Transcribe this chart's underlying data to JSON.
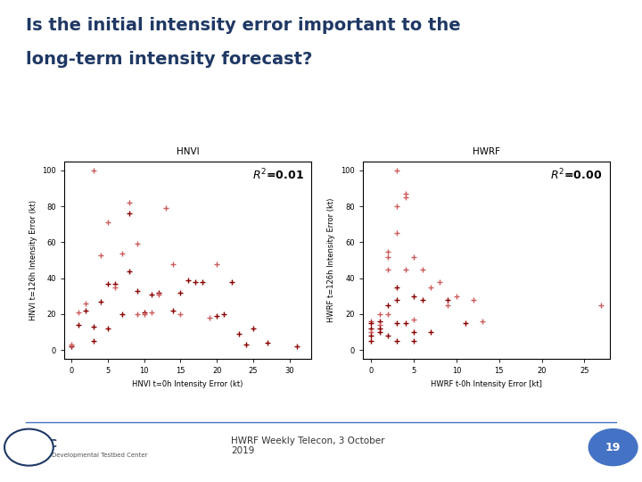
{
  "title_line1": "Is the initial intensity error important to the",
  "title_line2": "long-term intensity forecast?",
  "title_color": "#1F3864",
  "title_fontsize": 14,
  "background_color": "#FFFFFF",
  "plot1_title": "HNVI",
  "plot2_title": "HWRF",
  "plot1_xlabel": "HNVI t=0h Intensity Error (kt)",
  "plot1_ylabel": "HNVI t=126h Intensity Error (kt)",
  "plot2_xlabel": "HWRF t-0h Intensity Error [kt]",
  "plot2_ylabel": "HWRF t=126h Intensity Error (kt)",
  "plot1_r2_label": "$R^2$=0.01",
  "plot2_r2_label": "$R^2$=0.00",
  "marker_color_dark": "#8B0000",
  "marker_color_light": "#CD5C5C",
  "footer_text": "HWRF Weekly Telecon, 3 October\n2019",
  "page_number": "19",
  "page_circle_color": "#4472C4",
  "hnvi_x": [
    0,
    0,
    1,
    1,
    2,
    2,
    3,
    3,
    3,
    4,
    4,
    5,
    5,
    5,
    6,
    6,
    7,
    7,
    8,
    8,
    8,
    9,
    9,
    9,
    10,
    10,
    11,
    11,
    12,
    12,
    13,
    14,
    14,
    15,
    15,
    16,
    17,
    18,
    19,
    20,
    20,
    21,
    22,
    23,
    24,
    25,
    27,
    31
  ],
  "hnvi_y": [
    2,
    3,
    21,
    14,
    26,
    22,
    5,
    13,
    100,
    53,
    27,
    71,
    37,
    12,
    37,
    35,
    54,
    20,
    82,
    76,
    44,
    59,
    33,
    20,
    21,
    20,
    31,
    21,
    32,
    31,
    79,
    48,
    22,
    32,
    20,
    39,
    38,
    38,
    18,
    48,
    19,
    20,
    38,
    9,
    3,
    12,
    4,
    2
  ],
  "hnvi_dark": [
    1,
    0,
    0,
    1,
    0,
    1,
    1,
    1,
    0,
    0,
    1,
    0,
    1,
    1,
    1,
    0,
    0,
    1,
    0,
    1,
    1,
    0,
    1,
    0,
    1,
    0,
    1,
    0,
    1,
    0,
    0,
    0,
    1,
    1,
    0,
    1,
    1,
    1,
    0,
    0,
    1,
    1,
    1,
    1,
    1,
    1,
    1,
    1
  ],
  "hwrf_x": [
    0,
    0,
    0,
    0,
    0,
    0,
    1,
    1,
    1,
    1,
    1,
    2,
    2,
    2,
    2,
    2,
    2,
    3,
    3,
    3,
    3,
    3,
    3,
    3,
    4,
    4,
    4,
    4,
    5,
    5,
    5,
    5,
    5,
    6,
    6,
    7,
    7,
    8,
    9,
    9,
    10,
    11,
    12,
    13,
    27
  ],
  "hwrf_y": [
    16,
    15,
    12,
    10,
    8,
    5,
    20,
    16,
    14,
    12,
    10,
    55,
    52,
    45,
    25,
    20,
    8,
    100,
    80,
    65,
    35,
    28,
    15,
    5,
    87,
    85,
    45,
    15,
    52,
    30,
    17,
    10,
    5,
    45,
    28,
    35,
    10,
    38,
    28,
    25,
    30,
    15,
    28,
    16,
    25
  ],
  "hwrf_dark": [
    0,
    1,
    1,
    0,
    1,
    1,
    0,
    1,
    0,
    1,
    1,
    0,
    0,
    0,
    1,
    0,
    1,
    0,
    0,
    0,
    1,
    1,
    1,
    1,
    0,
    0,
    0,
    1,
    0,
    1,
    0,
    1,
    1,
    0,
    1,
    0,
    1,
    0,
    1,
    0,
    0,
    1,
    0,
    0,
    0
  ]
}
